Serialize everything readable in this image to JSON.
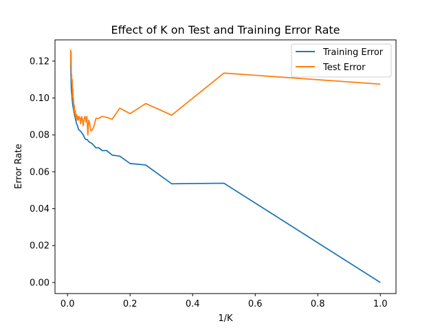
{
  "chart_data": {
    "type": "line",
    "title": "Effect of K on Test and Training Error Rate",
    "xlabel": "1/K",
    "ylabel": "Error Rate",
    "xlim": [
      -0.04,
      1.05
    ],
    "ylim": [
      -0.006,
      0.1315
    ],
    "xticks": [
      0.0,
      0.2,
      0.4,
      0.6,
      0.8,
      1.0
    ],
    "xtick_labels": [
      "0.0",
      "0.2",
      "0.4",
      "0.6",
      "0.8",
      "1.0"
    ],
    "yticks": [
      0.0,
      0.02,
      0.04,
      0.06,
      0.08,
      0.1,
      0.12
    ],
    "ytick_labels": [
      "0.00",
      "0.02",
      "0.04",
      "0.06",
      "0.08",
      "0.10",
      "0.12"
    ],
    "grid": false,
    "legend_position": "top-right",
    "series": [
      {
        "name": "Training Error",
        "color": "#1f77b4",
        "x": [
          0.01,
          0.0102,
          0.0106,
          0.011,
          0.0115,
          0.012,
          0.013,
          0.014,
          0.015,
          0.017,
          0.019,
          0.02,
          0.022,
          0.025,
          0.027,
          0.029,
          0.032,
          0.035,
          0.038,
          0.042,
          0.046,
          0.05,
          0.053,
          0.056,
          0.059,
          0.063,
          0.067,
          0.071,
          0.077,
          0.083,
          0.091,
          0.1,
          0.111,
          0.125,
          0.143,
          0.167,
          0.2,
          0.25,
          0.333,
          0.5,
          1.0
        ],
        "y": [
          0.125,
          0.122,
          0.116,
          0.112,
          0.109,
          0.105,
          0.103,
          0.101,
          0.099,
          0.096,
          0.094,
          0.093,
          0.091,
          0.089,
          0.0875,
          0.086,
          0.085,
          0.083,
          0.0825,
          0.082,
          0.081,
          0.08,
          0.079,
          0.078,
          0.0775,
          0.0775,
          0.0765,
          0.076,
          0.0755,
          0.0745,
          0.073,
          0.073,
          0.0715,
          0.0715,
          0.069,
          0.0685,
          0.0645,
          0.0637,
          0.0535,
          0.0538,
          0.0
        ]
      },
      {
        "name": "Test Error",
        "color": "#ff7f0e",
        "x": [
          0.01,
          0.0102,
          0.0106,
          0.011,
          0.0115,
          0.012,
          0.0125,
          0.013,
          0.014,
          0.015,
          0.016,
          0.017,
          0.018,
          0.019,
          0.02,
          0.021,
          0.022,
          0.023,
          0.025,
          0.027,
          0.029,
          0.031,
          0.033,
          0.035,
          0.037,
          0.04,
          0.042,
          0.045,
          0.048,
          0.05,
          0.053,
          0.056,
          0.059,
          0.062,
          0.065,
          0.068,
          0.071,
          0.075,
          0.08,
          0.083,
          0.091,
          0.1,
          0.111,
          0.125,
          0.143,
          0.167,
          0.2,
          0.25,
          0.333,
          0.5,
          1.0
        ],
        "y": [
          0.125,
          0.126,
          0.12,
          0.118,
          0.125,
          0.115,
          0.11,
          0.113,
          0.108,
          0.11,
          0.1,
          0.105,
          0.098,
          0.1,
          0.096,
          0.093,
          0.096,
          0.091,
          0.093,
          0.089,
          0.091,
          0.088,
          0.09,
          0.088,
          0.09,
          0.089,
          0.086,
          0.09,
          0.088,
          0.085,
          0.089,
          0.09,
          0.087,
          0.09,
          0.08,
          0.088,
          0.086,
          0.082,
          0.083,
          0.084,
          0.089,
          0.089,
          0.09,
          0.0895,
          0.0885,
          0.0945,
          0.0915,
          0.097,
          0.0907,
          0.1135,
          0.1075
        ]
      }
    ]
  }
}
